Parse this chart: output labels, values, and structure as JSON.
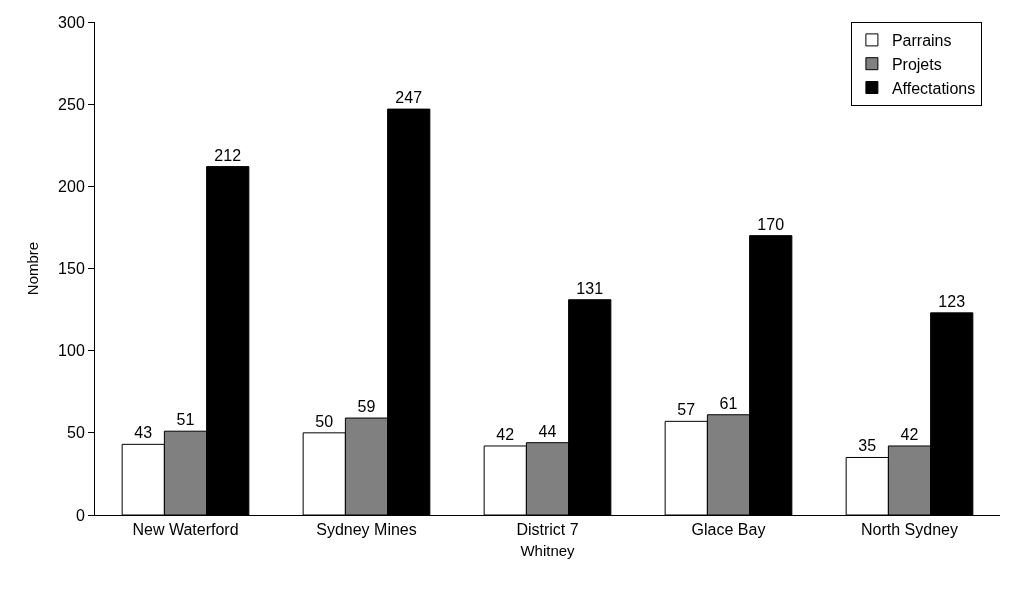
{
  "chart_data": {
    "type": "bar",
    "xlabel": "Whitney",
    "ylabel": "Nombre",
    "categories": [
      "New Waterford",
      "Sydney Mines",
      "District 7",
      "Glace Bay",
      "North Sydney"
    ],
    "series": [
      {
        "name": "Parrains",
        "color": "#ffffff",
        "values": [
          43,
          50,
          42,
          57,
          35
        ]
      },
      {
        "name": "Projets",
        "color": "#808080",
        "values": [
          51,
          59,
          44,
          61,
          42
        ]
      },
      {
        "name": "Affectations",
        "color": "#000000",
        "values": [
          212,
          247,
          131,
          170,
          123
        ]
      }
    ],
    "ylim": [
      0,
      300
    ],
    "yticks": [
      0,
      50,
      100,
      150,
      200,
      250,
      300
    ],
    "grid": false,
    "legend": "top right",
    "data_labels": true
  }
}
